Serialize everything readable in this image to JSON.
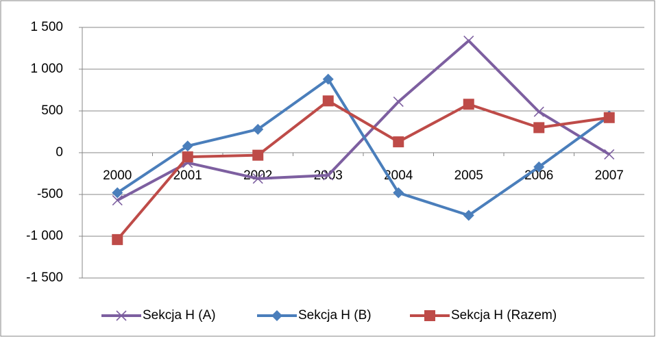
{
  "chart_data": {
    "type": "line",
    "categories": [
      "2000",
      "2001",
      "2002",
      "2003",
      "2004",
      "2005",
      "2006",
      "2007"
    ],
    "series": [
      {
        "name": "Sekcja H (A)",
        "color": "#7d5fa0",
        "marker": "x",
        "values": [
          -570,
          -120,
          -310,
          -270,
          610,
          1340,
          490,
          -20
        ]
      },
      {
        "name": "Sekcja H (B)",
        "color": "#4a7ebb",
        "marker": "diamond",
        "values": [
          -480,
          80,
          280,
          880,
          -480,
          -750,
          -170,
          440
        ]
      },
      {
        "name": "Sekcja H (Razem)",
        "color": "#be4b48",
        "marker": "square",
        "values": [
          -1040,
          -50,
          -30,
          620,
          130,
          580,
          300,
          420
        ]
      }
    ],
    "ylim": [
      -1500,
      1500
    ],
    "yticks": [
      {
        "value": -1500,
        "label": "-1 500"
      },
      {
        "value": -1000,
        "label": "-1 000"
      },
      -500,
      0,
      500,
      {
        "value": 1000,
        "label": "1 000"
      },
      {
        "value": 1500,
        "label": "1 500"
      }
    ],
    "grid": true,
    "legend": "bottom"
  }
}
